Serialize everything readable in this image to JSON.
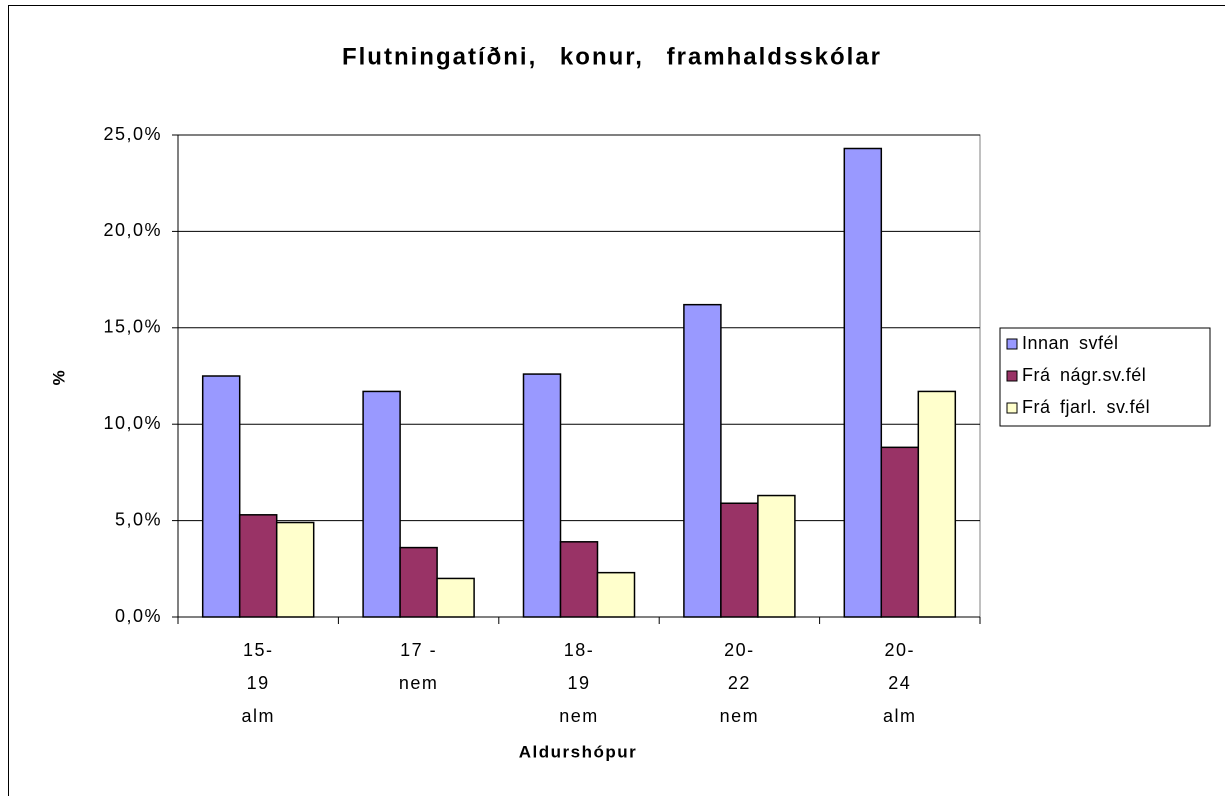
{
  "chart_data": {
    "type": "bar",
    "title": "Flutningatíðni, konur, framhaldsskólar",
    "x_label": "Aldurshópur",
    "y_label": "%",
    "categories": [
      [
        "15-",
        "19",
        "alm"
      ],
      [
        "17 -",
        "nem"
      ],
      [
        "18-",
        "19",
        "nem"
      ],
      [
        "20-",
        "22",
        "nem"
      ],
      [
        "20-",
        "24",
        "alm"
      ]
    ],
    "series": [
      {
        "name": "Innan svfél",
        "color": "#9999ff",
        "values": [
          12.5,
          11.7,
          12.6,
          16.2,
          24.3
        ]
      },
      {
        "name": "Frá nágr.sv.fél",
        "color": "#993366",
        "values": [
          5.3,
          3.6,
          3.9,
          5.9,
          8.8
        ]
      },
      {
        "name": "Frá fjarl. sv.fél",
        "color": "#ffffcc",
        "values": [
          4.9,
          2.0,
          2.3,
          6.3,
          11.7
        ]
      }
    ],
    "ylim": [
      0,
      25
    ],
    "yticks": [
      {
        "value": 0,
        "label": "0,0%"
      },
      {
        "value": 5,
        "label": "5,0%"
      },
      {
        "value": 10,
        "label": "10,0%"
      },
      {
        "value": 15,
        "label": "15,0%"
      },
      {
        "value": 20,
        "label": "20,0%"
      },
      {
        "value": 25,
        "label": "25,0%"
      }
    ],
    "grid": true,
    "legend": "right"
  }
}
